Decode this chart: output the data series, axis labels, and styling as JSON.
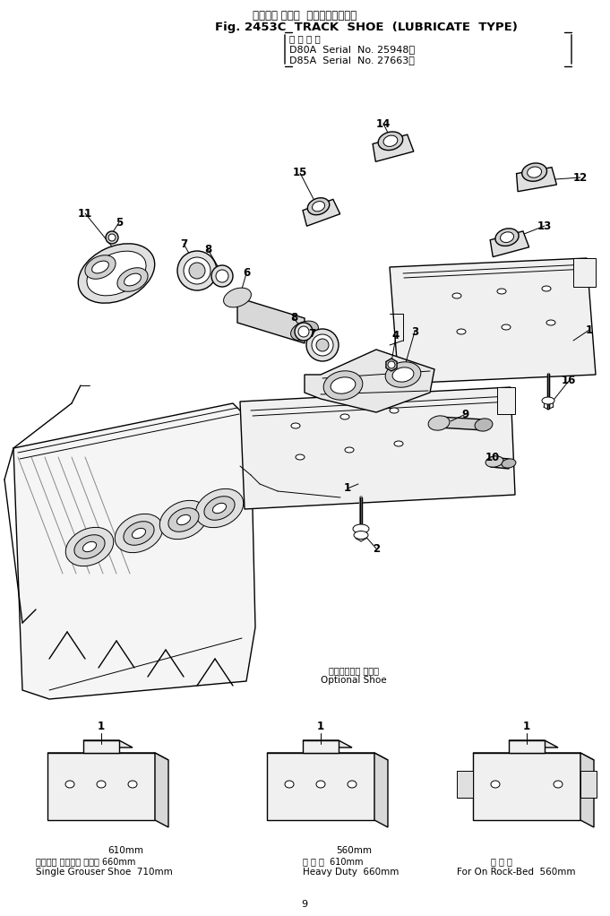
{
  "title_jp": "トラック シュー  ルーブリケート型",
  "title_en": "Fig. 2453C  TRACK  SHOE  (LUBRICATE  TYPE)",
  "applicable_jp": "適 用 号 機",
  "serial1": "D80A  Serial  No. 25948～",
  "serial2": "D85A  Serial  No. 27663～",
  "optional_shoe_jp": "オプショナル シュー",
  "optional_shoe_en": "Optional Shoe",
  "shoe1_line1": "610mm",
  "shoe1_line2": "シングル グローサ シュー 660mm",
  "shoe1_line3": "Single Grouser Shoe  710mm",
  "shoe2_line1": "560mm",
  "shoe2_line2": "強 化 形  610mm",
  "shoe2_line3": "Heavy Duty  660mm",
  "shoe3_line1": "岩 盤 用",
  "shoe3_line2": "For On Rock-Bed  560mm",
  "bg_color": "#ffffff",
  "figsize": [
    6.81,
    10.22
  ],
  "dpi": 100
}
